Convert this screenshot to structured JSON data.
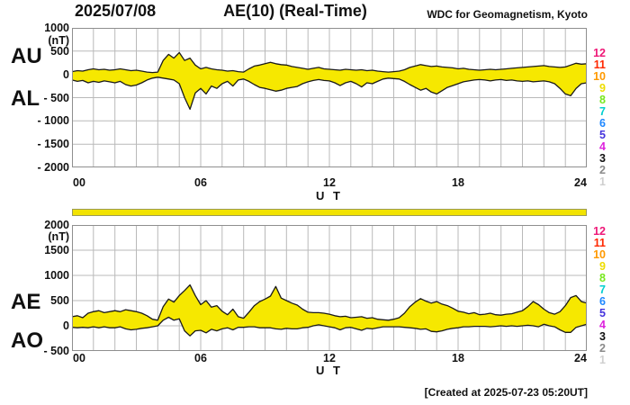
{
  "header": {
    "date": "2025/07/08",
    "title": "AE(10) (Real-Time)",
    "source": "WDC for Geomagnetism, Kyoto"
  },
  "footer": {
    "created": "[Created at 2025-07-23 05:20UT]"
  },
  "colors": {
    "fill": "#f6e800",
    "curve": "#1a1a1a",
    "grid": "#b9b9b9",
    "frame": "#8f8f8f",
    "bar_fill": "#f2e300",
    "bar_border": "#9b9b55"
  },
  "right_color_scale": {
    "items": [
      {
        "label": "12",
        "color": "#ee1777"
      },
      {
        "label": "11",
        "color": "#ff2800"
      },
      {
        "label": "10",
        "color": "#ff9900"
      },
      {
        "label": "9",
        "color": "#eedd00"
      },
      {
        "label": "8",
        "color": "#77e81e"
      },
      {
        "label": "7",
        "color": "#00cfcf"
      },
      {
        "label": "6",
        "color": "#1e87ff"
      },
      {
        "label": "5",
        "color": "#4433dd"
      },
      {
        "label": "4",
        "color": "#dd22dd"
      },
      {
        "label": "3",
        "color": "#111111"
      },
      {
        "label": "2",
        "color": "#8a8a8a"
      },
      {
        "label": "1",
        "color": "#cfcfcf"
      }
    ]
  },
  "panels": [
    {
      "left_labels": [
        "AU",
        "AL"
      ],
      "unit": "(nT)",
      "yticks": [
        "1000",
        "500",
        "0",
        "- 500",
        "- 1000",
        "- 1500",
        "- 2000"
      ],
      "xticks": [
        "00",
        "06",
        "12",
        "18",
        "24"
      ],
      "xlabel": "U T"
    },
    {
      "left_labels": [
        "AE",
        "AO"
      ],
      "unit": "(nT)",
      "yticks": [
        "2000",
        "1500",
        "1000",
        "500",
        "0",
        "- 500"
      ],
      "xticks": [
        "00",
        "06",
        "12",
        "18",
        "24"
      ],
      "xlabel": "U T"
    }
  ],
  "chart_data": [
    {
      "type": "area",
      "title": "AU / AL indices",
      "xlabel": "U T",
      "ylabel": "(nT)",
      "xlim": [
        0,
        24
      ],
      "ylim": [
        -2000,
        1000
      ],
      "grid": true,
      "x_start": 0,
      "x_step_hours": 0.25,
      "series": [
        {
          "name": "AU",
          "values": [
            60,
            80,
            70,
            100,
            120,
            100,
            110,
            90,
            100,
            120,
            100,
            80,
            90,
            70,
            50,
            40,
            50,
            300,
            430,
            350,
            470,
            300,
            350,
            200,
            120,
            150,
            120,
            100,
            90,
            70,
            80,
            60,
            50,
            120,
            180,
            200,
            230,
            260,
            230,
            210,
            200,
            170,
            150,
            130,
            110,
            130,
            150,
            120,
            110,
            100,
            90,
            110,
            100,
            90,
            100,
            80,
            90,
            70,
            60,
            50,
            60,
            70,
            100,
            150,
            180,
            210,
            190,
            170,
            180,
            160,
            150,
            140,
            120,
            130,
            110,
            100,
            90,
            100,
            110,
            100,
            110,
            120,
            130,
            140,
            150,
            160,
            170,
            180,
            190,
            170,
            160,
            150,
            160,
            200,
            240,
            220,
            230
          ]
        },
        {
          "name": "AL",
          "values": [
            -120,
            -150,
            -130,
            -180,
            -150,
            -170,
            -140,
            -160,
            -180,
            -150,
            -220,
            -250,
            -230,
            -180,
            -120,
            -80,
            -60,
            -80,
            -100,
            -120,
            -200,
            -500,
            -750,
            -400,
            -300,
            -420,
            -250,
            -300,
            -200,
            -150,
            -250,
            -120,
            -100,
            -150,
            -220,
            -280,
            -300,
            -330,
            -360,
            -340,
            -300,
            -280,
            -260,
            -200,
            -160,
            -130,
            -110,
            -130,
            -140,
            -180,
            -240,
            -180,
            -150,
            -200,
            -270,
            -180,
            -200,
            -150,
            -100,
            -80,
            -90,
            -100,
            -150,
            -220,
            -280,
            -340,
            -300,
            -380,
            -420,
            -350,
            -280,
            -240,
            -200,
            -160,
            -140,
            -120,
            -110,
            -120,
            -140,
            -120,
            -110,
            -130,
            -120,
            -140,
            -150,
            -140,
            -160,
            -150,
            -140,
            -160,
            -200,
            -300,
            -420,
            -460,
            -300,
            -200,
            -180
          ]
        }
      ]
    },
    {
      "type": "area",
      "title": "AE / AO indices",
      "xlabel": "U T",
      "ylabel": "(nT)",
      "xlim": [
        0,
        24
      ],
      "ylim": [
        -500,
        2000
      ],
      "grid": true,
      "x_start": 0,
      "x_step_hours": 0.25,
      "series": [
        {
          "name": "AE",
          "values": [
            180,
            200,
            160,
            250,
            280,
            300,
            260,
            280,
            300,
            280,
            320,
            300,
            280,
            250,
            200,
            130,
            110,
            380,
            530,
            470,
            600,
            700,
            810,
            600,
            420,
            500,
            370,
            400,
            290,
            220,
            330,
            180,
            150,
            270,
            400,
            480,
            530,
            590,
            780,
            550,
            500,
            450,
            410,
            330,
            270,
            260,
            260,
            250,
            230,
            200,
            180,
            190,
            160,
            170,
            180,
            150,
            160,
            130,
            120,
            110,
            130,
            160,
            250,
            380,
            470,
            540,
            490,
            450,
            480,
            430,
            400,
            350,
            290,
            270,
            240,
            260,
            220,
            230,
            250,
            220,
            210,
            230,
            240,
            270,
            300,
            380,
            480,
            420,
            330,
            260,
            230,
            280,
            400,
            560,
            600,
            480,
            450
          ]
        },
        {
          "name": "AO",
          "values": [
            -30,
            -40,
            -30,
            -40,
            -20,
            -40,
            -20,
            -40,
            -40,
            -20,
            -60,
            -80,
            -70,
            -50,
            -40,
            -20,
            0,
            110,
            170,
            110,
            140,
            -100,
            -200,
            -100,
            -90,
            -140,
            -70,
            -100,
            -60,
            -40,
            -80,
            -30,
            -30,
            -20,
            -20,
            -40,
            -40,
            -40,
            -60,
            -70,
            -50,
            -60,
            -60,
            -40,
            -30,
            0,
            20,
            0,
            -20,
            -40,
            -80,
            -40,
            -30,
            -60,
            -90,
            -50,
            -60,
            -40,
            -20,
            -20,
            -20,
            -20,
            -30,
            -40,
            -50,
            -70,
            -60,
            -110,
            -120,
            -100,
            -70,
            -50,
            -40,
            -20,
            -20,
            -10,
            -10,
            -10,
            -20,
            -10,
            0,
            -10,
            0,
            -10,
            0,
            10,
            0,
            -20,
            30,
            0,
            -20,
            -80,
            -130,
            -130,
            -30,
            0,
            30
          ]
        }
      ]
    }
  ]
}
